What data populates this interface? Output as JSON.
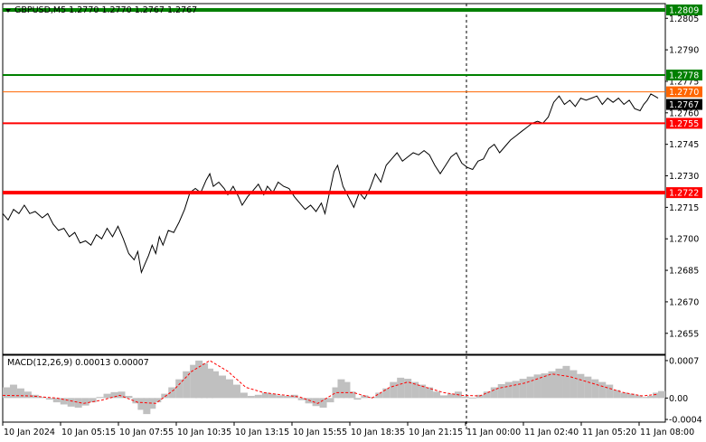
{
  "chart_data": [
    {
      "type": "line",
      "symbol": "GBPUSD,M5",
      "ohlc": [
        "1.2770",
        "1.2770",
        "1.2767",
        "1.2767"
      ],
      "header_label": "GBPUSD,M5  1.2770 1.2770 1.2767 1.2767",
      "ylim": [
        1.2645,
        1.2812
      ],
      "y_ticks": [
        "1.2805",
        "1.2790",
        "1.2775",
        "1.2760",
        "1.2745",
        "1.2730",
        "1.2715",
        "1.2700",
        "1.2685",
        "1.2670",
        "1.2655"
      ],
      "x_ticks": [
        "10 Jan 2024",
        "10 Jan 05:15",
        "10 Jan 07:55",
        "10 Jan 10:35",
        "10 Jan 13:15",
        "10 Jan 15:55",
        "10 Jan 18:35",
        "10 Jan 21:15",
        "11 Jan 00:00",
        "11 Jan 02:40",
        "11 Jan 05:20",
        "11 Jan 08:00"
      ],
      "levels": [
        {
          "value": 1.2809,
          "label": "1.2809",
          "color": "#008000",
          "style": "resistance-upper"
        },
        {
          "value": 1.2778,
          "label": "1.2778",
          "color": "#008000",
          "style": "resistance"
        },
        {
          "value": 1.277,
          "label": "1.2770",
          "color": "#ff6600",
          "style": "bid"
        },
        {
          "value": 1.2755,
          "label": "1.2755",
          "color": "#ff0000",
          "style": "support"
        },
        {
          "value": 1.2722,
          "label": "1.2722",
          "color": "#ff0000",
          "style": "support-lower"
        }
      ],
      "last_price": {
        "value": 1.2767,
        "label": "1.2767"
      },
      "day_separator_index": 8,
      "price_series": [
        [
          0,
          1.2712
        ],
        [
          6,
          1.2709
        ],
        [
          12,
          1.2714
        ],
        [
          18,
          1.2712
        ],
        [
          24,
          1.2716
        ],
        [
          30,
          1.2712
        ],
        [
          36,
          1.2713
        ],
        [
          44,
          1.271
        ],
        [
          50,
          1.2712
        ],
        [
          56,
          1.2707
        ],
        [
          62,
          1.2704
        ],
        [
          68,
          1.2705
        ],
        [
          74,
          1.2701
        ],
        [
          80,
          1.2703
        ],
        [
          86,
          1.2698
        ],
        [
          92,
          1.2699
        ],
        [
          98,
          1.2697
        ],
        [
          104,
          1.2702
        ],
        [
          110,
          1.27
        ],
        [
          116,
          1.2705
        ],
        [
          122,
          1.2701
        ],
        [
          128,
          1.2706
        ],
        [
          134,
          1.27
        ],
        [
          140,
          1.2693
        ],
        [
          146,
          1.269
        ],
        [
          150,
          1.2694
        ],
        [
          154,
          1.2684
        ],
        [
          158,
          1.2688
        ],
        [
          162,
          1.2692
        ],
        [
          166,
          1.2697
        ],
        [
          170,
          1.2693
        ],
        [
          174,
          1.2701
        ],
        [
          178,
          1.2697
        ],
        [
          184,
          1.2704
        ],
        [
          190,
          1.2703
        ],
        [
          196,
          1.2708
        ],
        [
          202,
          1.2714
        ],
        [
          208,
          1.2722
        ],
        [
          214,
          1.2724
        ],
        [
          220,
          1.2722
        ],
        [
          226,
          1.2728
        ],
        [
          230,
          1.2731
        ],
        [
          234,
          1.2725
        ],
        [
          240,
          1.2727
        ],
        [
          246,
          1.2724
        ],
        [
          250,
          1.2721
        ],
        [
          256,
          1.2725
        ],
        [
          262,
          1.272
        ],
        [
          266,
          1.2716
        ],
        [
          272,
          1.272
        ],
        [
          278,
          1.2723
        ],
        [
          284,
          1.2726
        ],
        [
          290,
          1.2721
        ],
        [
          294,
          1.2725
        ],
        [
          300,
          1.2722
        ],
        [
          306,
          1.2727
        ],
        [
          312,
          1.2725
        ],
        [
          318,
          1.2724
        ],
        [
          324,
          1.272
        ],
        [
          330,
          1.2717
        ],
        [
          336,
          1.2714
        ],
        [
          342,
          1.2716
        ],
        [
          348,
          1.2713
        ],
        [
          354,
          1.2717
        ],
        [
          358,
          1.2712
        ],
        [
          362,
          1.272
        ],
        [
          368,
          1.2732
        ],
        [
          372,
          1.2735
        ],
        [
          378,
          1.2725
        ],
        [
          384,
          1.272
        ],
        [
          390,
          1.2715
        ],
        [
          396,
          1.2722
        ],
        [
          402,
          1.2719
        ],
        [
          408,
          1.2724
        ],
        [
          414,
          1.2731
        ],
        [
          420,
          1.2727
        ],
        [
          426,
          1.2735
        ],
        [
          432,
          1.2738
        ],
        [
          438,
          1.2741
        ],
        [
          444,
          1.2737
        ],
        [
          450,
          1.2739
        ],
        [
          456,
          1.2741
        ],
        [
          462,
          1.274
        ],
        [
          468,
          1.2742
        ],
        [
          474,
          1.274
        ],
        [
          480,
          1.2735
        ],
        [
          486,
          1.2731
        ],
        [
          492,
          1.2735
        ],
        [
          498,
          1.2739
        ],
        [
          504,
          1.2741
        ],
        [
          510,
          1.2736
        ],
        [
          516,
          1.2734
        ],
        [
          522,
          1.2733
        ],
        [
          528,
          1.2737
        ],
        [
          534,
          1.2738
        ],
        [
          540,
          1.2743
        ],
        [
          546,
          1.2745
        ],
        [
          552,
          1.2741
        ],
        [
          558,
          1.2744
        ],
        [
          564,
          1.2747
        ],
        [
          570,
          1.2749
        ],
        [
          576,
          1.2751
        ],
        [
          582,
          1.2753
        ],
        [
          588,
          1.2755
        ],
        [
          594,
          1.2756
        ],
        [
          600,
          1.2755
        ],
        [
          606,
          1.2758
        ],
        [
          612,
          1.2765
        ],
        [
          618,
          1.2768
        ],
        [
          624,
          1.2764
        ],
        [
          630,
          1.2766
        ],
        [
          636,
          1.2763
        ],
        [
          642,
          1.2767
        ],
        [
          648,
          1.2766
        ],
        [
          654,
          1.2767
        ],
        [
          660,
          1.2768
        ],
        [
          666,
          1.2764
        ],
        [
          672,
          1.2767
        ],
        [
          678,
          1.2765
        ],
        [
          684,
          1.2767
        ],
        [
          690,
          1.2764
        ],
        [
          696,
          1.2766
        ],
        [
          702,
          1.2762
        ],
        [
          708,
          1.2761
        ],
        [
          712,
          1.2764
        ],
        [
          716,
          1.2766
        ],
        [
          720,
          1.2769
        ],
        [
          724,
          1.2768
        ],
        [
          728,
          1.2767
        ]
      ]
    },
    {
      "type": "bar",
      "label": "MACD(12,26,9) 0.00013 0.00007",
      "ylim": [
        -0.00045,
        0.0008
      ],
      "y_ticks": [
        "0.0007",
        "0.00",
        "-0.0004"
      ],
      "hist": [
        [
          0,
          0.0002
        ],
        [
          8,
          0.00025
        ],
        [
          16,
          0.00018
        ],
        [
          24,
          0.00012
        ],
        [
          32,
          6e-05
        ],
        [
          40,
          2e-05
        ],
        [
          48,
          -3e-05
        ],
        [
          56,
          -8e-05
        ],
        [
          64,
          -0.00012
        ],
        [
          72,
          -0.00016
        ],
        [
          80,
          -0.00018
        ],
        [
          88,
          -0.00014
        ],
        [
          96,
          -8e-05
        ],
        [
          104,
          2e-05
        ],
        [
          112,
          8e-05
        ],
        [
          120,
          0.00011
        ],
        [
          128,
          0.00012
        ],
        [
          136,
          4e-05
        ],
        [
          144,
          -0.0001
        ],
        [
          150,
          -0.00022
        ],
        [
          156,
          -0.0003
        ],
        [
          162,
          -0.0002
        ],
        [
          168,
          -8e-05
        ],
        [
          176,
          8e-05
        ],
        [
          184,
          0.0002
        ],
        [
          192,
          0.00035
        ],
        [
          200,
          0.0005
        ],
        [
          208,
          0.00062
        ],
        [
          214,
          0.0007
        ],
        [
          220,
          0.00065
        ],
        [
          226,
          0.00055
        ],
        [
          232,
          0.0005
        ],
        [
          240,
          0.00042
        ],
        [
          248,
          0.00035
        ],
        [
          256,
          0.00025
        ],
        [
          264,
          0.0001
        ],
        [
          272,
          4e-05
        ],
        [
          280,
          6e-05
        ],
        [
          288,
          0.0001
        ],
        [
          296,
          8e-05
        ],
        [
          304,
          5e-05
        ],
        [
          312,
          4e-05
        ],
        [
          320,
          6e-05
        ],
        [
          328,
          -4e-05
        ],
        [
          336,
          -0.0001
        ],
        [
          344,
          -0.00015
        ],
        [
          352,
          -0.00018
        ],
        [
          360,
          -8e-05
        ],
        [
          366,
          0.0002
        ],
        [
          372,
          0.00035
        ],
        [
          378,
          0.0003
        ],
        [
          384,
          0.00012
        ],
        [
          390,
          -3e-05
        ],
        [
          398,
          5e-05
        ],
        [
          406,
          2e-05
        ],
        [
          414,
          0.0001
        ],
        [
          422,
          0.00018
        ],
        [
          430,
          0.0003
        ],
        [
          438,
          0.00038
        ],
        [
          446,
          0.00036
        ],
        [
          454,
          0.0003
        ],
        [
          462,
          0.00025
        ],
        [
          470,
          0.0002
        ],
        [
          478,
          0.00012
        ],
        [
          486,
          5e-05
        ],
        [
          494,
          8e-05
        ],
        [
          502,
          0.00012
        ],
        [
          510,
          3e-05
        ],
        [
          518,
          1e-05
        ],
        [
          526,
          6e-05
        ],
        [
          534,
          0.00012
        ],
        [
          542,
          0.0002
        ],
        [
          550,
          0.00026
        ],
        [
          558,
          0.0003
        ],
        [
          566,
          0.00032
        ],
        [
          574,
          0.00036
        ],
        [
          582,
          0.0004
        ],
        [
          590,
          0.00044
        ],
        [
          598,
          0.00046
        ],
        [
          606,
          0.0005
        ],
        [
          614,
          0.00055
        ],
        [
          622,
          0.0006
        ],
        [
          630,
          0.00052
        ],
        [
          638,
          0.00045
        ],
        [
          646,
          0.0004
        ],
        [
          654,
          0.00035
        ],
        [
          662,
          0.0003
        ],
        [
          670,
          0.00025
        ],
        [
          678,
          0.00015
        ],
        [
          686,
          0.0001
        ],
        [
          694,
          8e-05
        ],
        [
          702,
          5e-05
        ],
        [
          710,
          2e-05
        ],
        [
          716,
          4e-05
        ],
        [
          722,
          0.0001
        ],
        [
          728,
          0.00013
        ]
      ],
      "signal": [
        [
          0,
          5e-05
        ],
        [
          30,
          4e-05
        ],
        [
          60,
          0.0
        ],
        [
          90,
          -0.0001
        ],
        [
          110,
          -4e-05
        ],
        [
          130,
          5e-05
        ],
        [
          150,
          -8e-05
        ],
        [
          170,
          -0.0001
        ],
        [
          190,
          0.00015
        ],
        [
          210,
          0.0005
        ],
        [
          230,
          0.0007
        ],
        [
          250,
          0.0005
        ],
        [
          270,
          0.0002
        ],
        [
          290,
          0.0001
        ],
        [
          310,
          6e-05
        ],
        [
          330,
          2e-05
        ],
        [
          350,
          -0.0001
        ],
        [
          370,
          0.0001
        ],
        [
          390,
          0.0001
        ],
        [
          410,
          0.0
        ],
        [
          430,
          0.0002
        ],
        [
          450,
          0.0003
        ],
        [
          470,
          0.0002
        ],
        [
          490,
          0.0001
        ],
        [
          510,
          5e-05
        ],
        [
          530,
          4e-05
        ],
        [
          550,
          0.00018
        ],
        [
          580,
          0.00028
        ],
        [
          610,
          0.00045
        ],
        [
          630,
          0.0004
        ],
        [
          660,
          0.00025
        ],
        [
          690,
          0.0001
        ],
        [
          710,
          4e-05
        ],
        [
          728,
          7e-05
        ]
      ]
    }
  ]
}
